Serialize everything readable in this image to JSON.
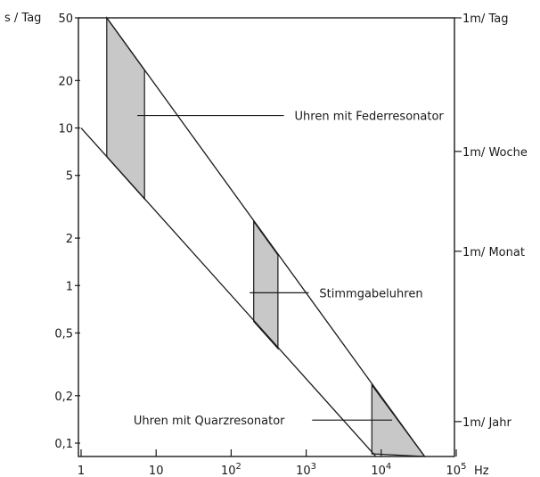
{
  "chart_data": {
    "type": "area",
    "title": "",
    "x_scale": "log",
    "y_scale": "log",
    "xlim": [
      1,
      100000
    ],
    "ylim": [
      0.08,
      50
    ],
    "grid": false,
    "xlabel_unit": "Hz",
    "ylabel_left": "s / Tag",
    "x_ticks": [
      {
        "value": 1,
        "label": "1"
      },
      {
        "value": 10,
        "label": "10"
      },
      {
        "value": 100,
        "base": "10",
        "exp": "2"
      },
      {
        "value": 1000,
        "base": "10",
        "exp": "3"
      },
      {
        "value": 10000,
        "base": "10",
        "exp": "4"
      },
      {
        "value": 100000,
        "base": "10",
        "exp": "5"
      }
    ],
    "y_ticks_left": [
      {
        "value": 50,
        "label": "50"
      },
      {
        "value": 20,
        "label": "20"
      },
      {
        "value": 10,
        "label": "10"
      },
      {
        "value": 5,
        "label": "5"
      },
      {
        "value": 2,
        "label": "2"
      },
      {
        "value": 1,
        "label": "1"
      },
      {
        "value": 0.5,
        "label": "0,5"
      },
      {
        "value": 0.2,
        "label": "0,2"
      },
      {
        "value": 0.1,
        "label": "0,1"
      }
    ],
    "y_ticks_right": [
      {
        "value": 50,
        "label": "1m/ Tag"
      },
      {
        "value": 7.1,
        "label": "1m/ Woche"
      },
      {
        "value": 1.65,
        "label": "1m/ Monat"
      },
      {
        "value": 0.137,
        "label": "1m/ Jahr"
      }
    ],
    "boundary_lines": [
      {
        "points": [
          [
            2.2,
            50
          ],
          [
            38000,
            0.08
          ]
        ]
      },
      {
        "points": [
          [
            1,
            10
          ],
          [
            8500,
            0.08
          ]
        ]
      }
    ],
    "regions": [
      {
        "name": "Uhren mit Federresonator",
        "x_range": [
          2.2,
          7
        ]
      },
      {
        "name": "Stimmgabeluhren",
        "x_range": [
          200,
          420
        ]
      },
      {
        "name": "Uhren mit Quarzresonator",
        "x_range": [
          7500,
          38000
        ]
      }
    ],
    "annotations": [
      {
        "label": "Uhren mit Federresonator",
        "point": [
          7,
          12
        ],
        "text_anchor": [
          700,
          12
        ]
      },
      {
        "label": "Stimmgabeluhren",
        "point": [
          220,
          0.9
        ],
        "text_anchor": [
          1500,
          0.9
        ]
      },
      {
        "label": "Uhren mit Quarzresonator",
        "text_anchor": [
          5,
          0.14
        ],
        "line": [
          [
            1200,
            0.14
          ],
          [
            14000,
            0.14
          ]
        ]
      }
    ],
    "colors": {
      "fill": "#c8c8c8",
      "line": "#1a1a1a"
    }
  }
}
